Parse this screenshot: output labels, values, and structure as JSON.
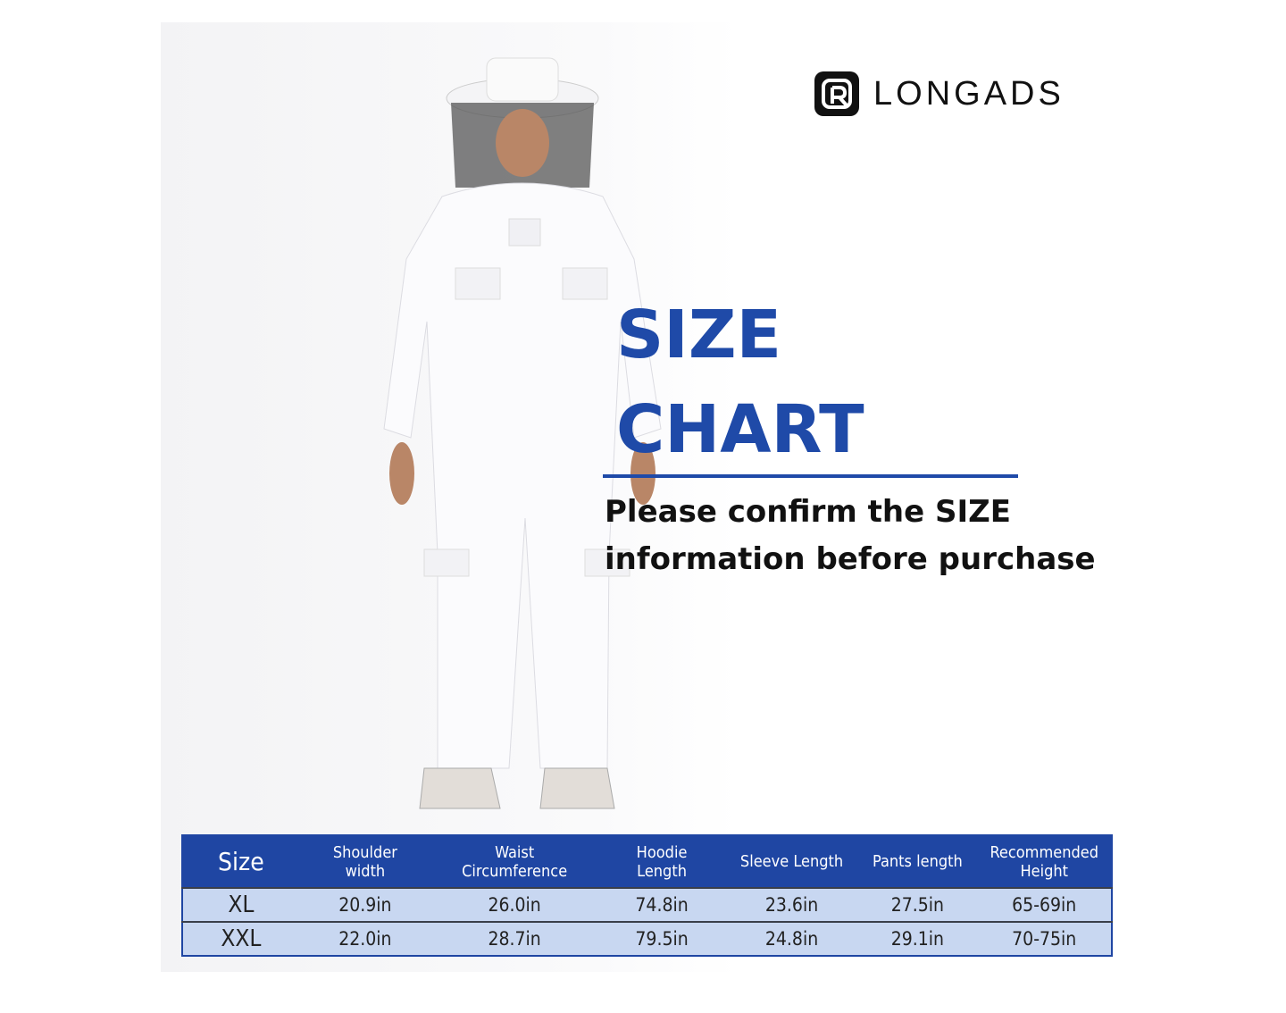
{
  "brand": {
    "name": "LONGADS",
    "logo_icon": "longads-logo-icon"
  },
  "heading": {
    "line1": "SIZE",
    "line2": "CHART",
    "accent_color": "#1f4aa8"
  },
  "subtitle": {
    "line1": "Please confirm the SIZE",
    "line2": "information before purchase"
  },
  "size_table": {
    "headers": [
      "Size",
      "Shoulder width",
      "Waist Circumference",
      "Hoodie Length",
      "Sleeve Length",
      "Pants length",
      "Recommended Height"
    ],
    "rows": [
      [
        "XL",
        "20.9in",
        "26.0in",
        "74.8in",
        "23.6in",
        "27.5in",
        "65-69in"
      ],
      [
        "XXL",
        "22.0in",
        "28.7in",
        "79.5in",
        "24.8in",
        "29.1in",
        "70-75in"
      ]
    ]
  },
  "photo": {
    "subject": "model-in-white-beekeeping-suit"
  }
}
